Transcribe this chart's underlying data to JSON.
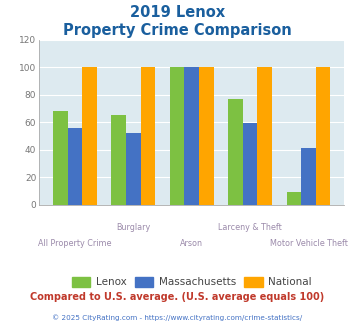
{
  "title_line1": "2019 Lenox",
  "title_line2": "Property Crime Comparison",
  "categories": [
    "All Property Crime",
    "Burglary",
    "Arson",
    "Larceny & Theft",
    "Motor Vehicle Theft"
  ],
  "lenox": [
    68,
    65,
    100,
    77,
    9
  ],
  "massachusetts": [
    56,
    52,
    100,
    59,
    41
  ],
  "national": [
    100,
    100,
    100,
    100,
    100
  ],
  "color_lenox": "#7dc142",
  "color_massachusetts": "#4472c4",
  "color_national": "#ffa500",
  "ylim": [
    0,
    120
  ],
  "yticks": [
    0,
    20,
    40,
    60,
    80,
    100,
    120
  ],
  "xlabel_color": "#9b8aaa",
  "legend_labels": [
    "Lenox",
    "Massachusetts",
    "National"
  ],
  "footer_text1": "Compared to U.S. average. (U.S. average equals 100)",
  "footer_text2": "© 2025 CityRating.com - https://www.cityrating.com/crime-statistics/",
  "title_color": "#1a5f9e",
  "footer1_color": "#c0392b",
  "footer2_color": "#4472c4",
  "bg_color": "#ddeaf0"
}
